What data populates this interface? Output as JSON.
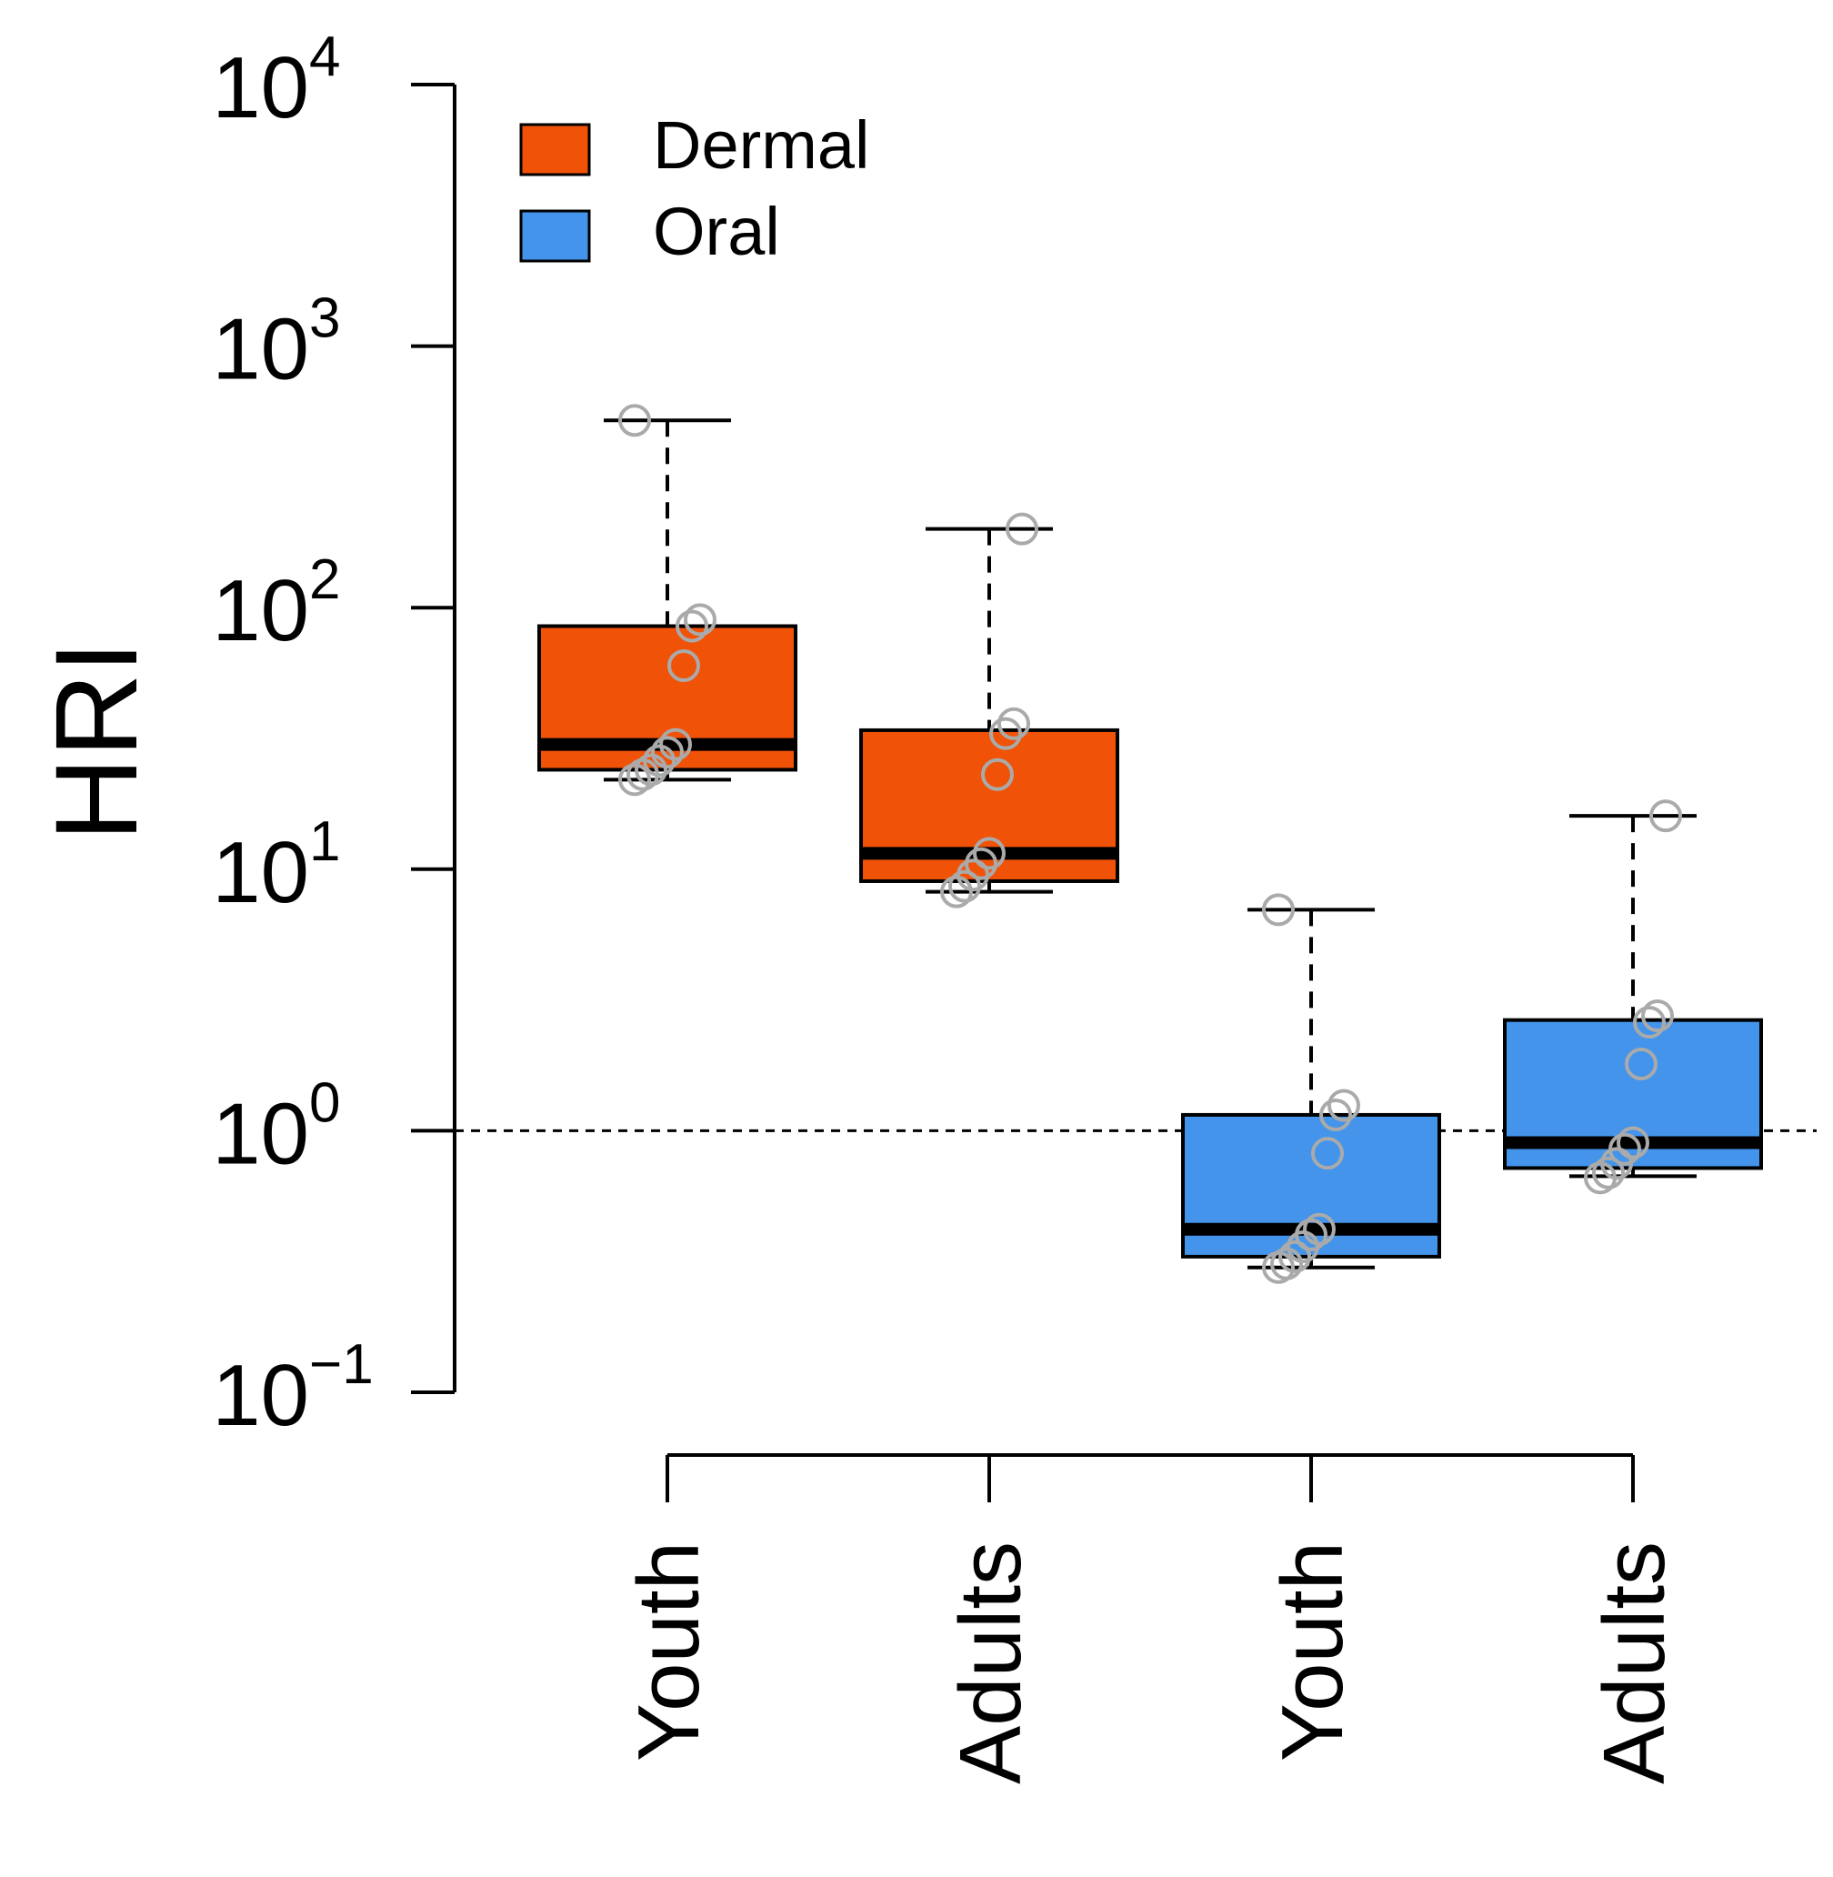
{
  "chart_data": {
    "type": "boxplot",
    "ylabel": "HRI",
    "yscale": "log10",
    "ylim": [
      0.1,
      10000
    ],
    "yticks": [
      {
        "value": 0.1,
        "base": "10",
        "exp": "−1"
      },
      {
        "value": 1,
        "base": "10",
        "exp": "0"
      },
      {
        "value": 10,
        "base": "10",
        "exp": "1"
      },
      {
        "value": 100,
        "base": "10",
        "exp": "2"
      },
      {
        "value": 1000,
        "base": "10",
        "exp": "3"
      },
      {
        "value": 10000,
        "base": "10",
        "exp": "4"
      }
    ],
    "reference_line": 1,
    "categories": [
      "Youth",
      "Adults",
      "Youth",
      "Adults"
    ],
    "legend": [
      {
        "label": "Dermal",
        "color": "#F05208"
      },
      {
        "label": "Oral",
        "color": "#4394EA"
      }
    ],
    "boxes": [
      {
        "category": "Youth",
        "group": "Dermal",
        "color": "#F05208",
        "whisker_low": 22,
        "q1": 24,
        "median": 30,
        "q3": 85,
        "whisker_high": 520,
        "points": [
          22,
          23,
          24,
          26,
          28,
          30,
          60,
          85,
          90,
          520
        ]
      },
      {
        "category": "Adults",
        "group": "Dermal",
        "color": "#F05208",
        "whisker_low": 8.2,
        "q1": 9,
        "median": 11.5,
        "q3": 34,
        "whisker_high": 200,
        "points": [
          8.2,
          8.6,
          9.5,
          10.5,
          11.5,
          23,
          33,
          36,
          200
        ]
      },
      {
        "category": "Youth",
        "group": "Oral",
        "color": "#4394EA",
        "whisker_low": 0.3,
        "q1": 0.33,
        "median": 0.42,
        "q3": 1.15,
        "whisker_high": 7,
        "points": [
          0.3,
          0.31,
          0.33,
          0.36,
          0.4,
          0.42,
          0.82,
          1.15,
          1.25,
          7
        ]
      },
      {
        "category": "Adults",
        "group": "Oral",
        "color": "#4394EA",
        "whisker_low": 0.67,
        "q1": 0.72,
        "median": 0.9,
        "q3": 2.65,
        "whisker_high": 16,
        "points": [
          0.66,
          0.69,
          0.75,
          0.85,
          0.9,
          1.8,
          2.6,
          2.75,
          16
        ]
      }
    ]
  }
}
